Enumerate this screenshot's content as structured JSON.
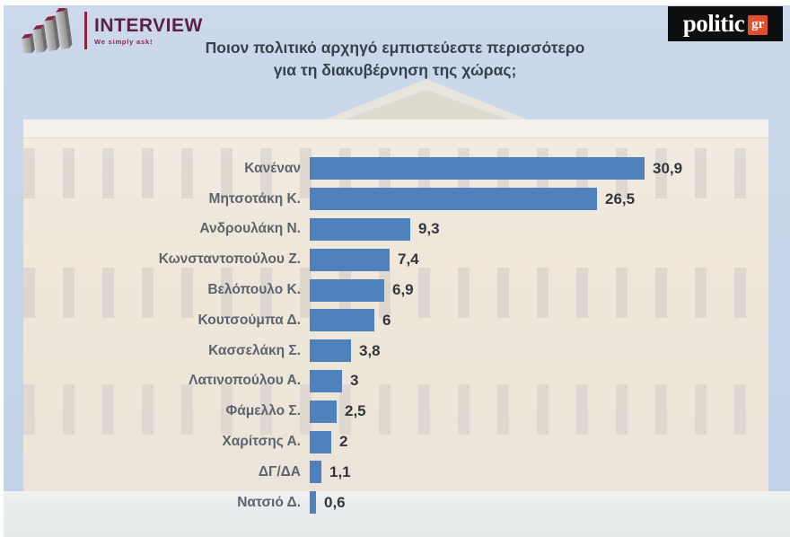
{
  "header": {
    "interview_logo": {
      "name": "INTERVIEW",
      "tagline": "We simply ask!"
    },
    "politic_logo": {
      "name": "politic",
      "suffix": "gr"
    }
  },
  "title": {
    "line1": "Ποιον πολιτικό αρχηγό εμπιστεύεστε περισσότερο",
    "line2": "για τη διακυβέρνηση της χώρας;"
  },
  "chart_data": {
    "type": "bar",
    "orientation": "horizontal",
    "title": "Ποιον πολιτικό αρχηγό εμπιστεύεστε περισσότερο για τη διακυβέρνηση της χώρας;",
    "categories": [
      "Κανέναν",
      "Μητσοτάκη Κ.",
      "Ανδρουλάκη Ν.",
      "Κωνσταντοπούλου Ζ.",
      "Βελόπουλο Κ.",
      "Κουτσούμπα Δ.",
      "Κασσελάκη Σ.",
      "Λατινοπούλου Α.",
      "Φάμελλο Σ.",
      "Χαρίτσης Α.",
      "ΔΓ/ΔΑ",
      "Νατσιό Δ."
    ],
    "values": [
      30.9,
      26.5,
      9.3,
      7.4,
      6.9,
      6,
      3.8,
      3,
      2.5,
      2,
      1.1,
      0.6
    ],
    "value_labels": [
      "30,9",
      "26,5",
      "9,3",
      "7,4",
      "6,9",
      "6",
      "3,8",
      "3",
      "2,5",
      "2",
      "1,1",
      "0,6"
    ],
    "xlim": [
      0,
      31
    ],
    "bar_color": "#4f81bd",
    "grid": false,
    "legend": false
  },
  "colors": {
    "bar": "#4f81bd",
    "label_text": "#5c6470",
    "value_text": "#33363b",
    "title_text": "#3a4049",
    "logo_maroon": "#8c2342",
    "logo_plum": "#5a2145",
    "politic_orange": "#e0502c",
    "politic_black": "#0e0e0e",
    "sky": "#c7d5e9"
  }
}
